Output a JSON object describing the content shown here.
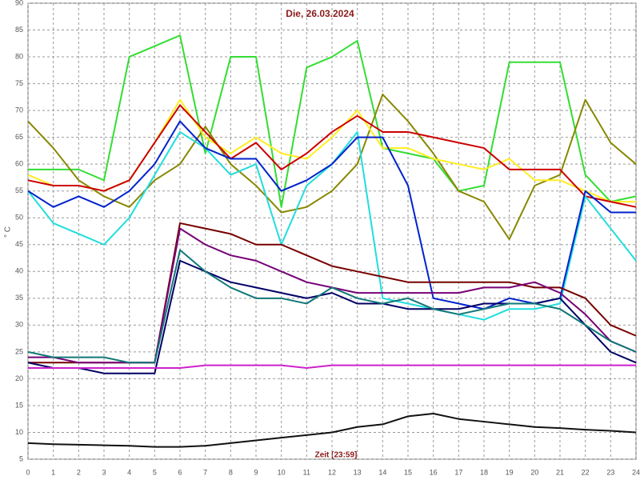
{
  "chart_data": {
    "type": "line",
    "title": "Die, 26.03.2024",
    "xlabel": "Zeit [23:59]",
    "ylabel": "° C",
    "x": [
      0,
      1,
      2,
      3,
      4,
      5,
      6,
      7,
      8,
      9,
      10,
      11,
      12,
      13,
      14,
      15,
      16,
      17,
      18,
      19,
      20,
      21,
      22,
      23,
      24
    ],
    "xlim": [
      0,
      24
    ],
    "xticks": [
      0,
      1,
      2,
      3,
      4,
      5,
      6,
      7,
      8,
      9,
      10,
      11,
      12,
      13,
      14,
      15,
      16,
      17,
      18,
      19,
      20,
      21,
      22,
      23,
      24
    ],
    "ylim": [
      5,
      90
    ],
    "yticks": [
      5,
      10,
      15,
      20,
      25,
      30,
      35,
      40,
      45,
      50,
      55,
      60,
      65,
      70,
      75,
      80,
      85,
      90
    ],
    "grid": true,
    "series": [
      {
        "color": "#33dd33",
        "values": [
          59,
          59,
          59,
          57,
          80,
          82,
          84,
          62,
          80,
          80,
          52,
          78,
          80,
          83,
          63,
          62,
          61,
          55,
          56,
          79,
          79,
          79,
          58,
          53,
          54
        ]
      },
      {
        "color": "#888800",
        "values": [
          68,
          63,
          57,
          54,
          52,
          57,
          60,
          67,
          60,
          56,
          51,
          52,
          55,
          60,
          73,
          68,
          62,
          55,
          53,
          46,
          56,
          58,
          72,
          64,
          60
        ]
      },
      {
        "color": "#ffee22",
        "values": [
          58,
          56,
          56,
          55,
          57,
          64,
          72,
          65,
          62,
          65,
          62,
          61,
          65,
          70,
          63,
          63,
          61,
          60,
          59,
          61,
          57,
          57,
          55,
          53,
          53
        ]
      },
      {
        "color": "#cc0000",
        "values": [
          57,
          56,
          56,
          55,
          57,
          64,
          71,
          66,
          61,
          64,
          59,
          62,
          66,
          69,
          66,
          66,
          65,
          64,
          63,
          59,
          59,
          59,
          54,
          53,
          52
        ]
      },
      {
        "color": "#22dddd",
        "values": [
          55,
          49,
          47,
          45,
          50,
          58,
          66,
          63,
          58,
          60,
          45,
          56,
          60,
          66,
          35,
          34,
          33,
          32,
          31,
          33,
          33,
          34,
          54,
          48,
          42
        ]
      },
      {
        "color": "#0022cc",
        "values": [
          55,
          52,
          54,
          52,
          55,
          60,
          68,
          63,
          61,
          61,
          55,
          57,
          60,
          65,
          65,
          56,
          35,
          34,
          33,
          35,
          34,
          35,
          55,
          51,
          51
        ]
      },
      {
        "color": "#770000",
        "values": [
          23,
          23,
          23,
          23,
          23,
          23,
          49,
          48,
          47,
          45,
          45,
          43,
          41,
          40,
          39,
          38,
          38,
          38,
          38,
          38,
          37,
          37,
          35,
          30,
          28
        ]
      },
      {
        "color": "#770077",
        "values": [
          24,
          24,
          23,
          23,
          23,
          23,
          48,
          45,
          43,
          42,
          40,
          38,
          37,
          36,
          36,
          36,
          36,
          36,
          37,
          37,
          38,
          36,
          32,
          27,
          25
        ]
      },
      {
        "color": "#000066",
        "values": [
          23,
          22,
          22,
          21,
          21,
          21,
          42,
          40,
          38,
          37,
          36,
          35,
          36,
          34,
          34,
          33,
          33,
          33,
          34,
          34,
          34,
          35,
          30,
          25,
          23
        ]
      },
      {
        "color": "#117777",
        "values": [
          25,
          24,
          24,
          24,
          23,
          23,
          44,
          40,
          37,
          35,
          35,
          34,
          37,
          35,
          34,
          35,
          33,
          32,
          33,
          34,
          34,
          33,
          30,
          27,
          25
        ]
      },
      {
        "color": "#cc22cc",
        "values": [
          22,
          22,
          22,
          22,
          22,
          22,
          22,
          22.5,
          22.5,
          22.5,
          22.5,
          22,
          22.5,
          22.5,
          22.5,
          22.5,
          22.5,
          22.5,
          22.5,
          22.5,
          22.5,
          22.5,
          22.5,
          22.5,
          22.5
        ]
      },
      {
        "color": "#111111",
        "values": [
          8,
          7.8,
          7.7,
          7.6,
          7.5,
          7.3,
          7.3,
          7.5,
          8,
          8.5,
          9,
          9.5,
          10,
          11,
          11.5,
          13,
          13.5,
          12.5,
          12,
          11.5,
          11,
          10.8,
          10.5,
          10.3,
          10
        ]
      }
    ]
  }
}
